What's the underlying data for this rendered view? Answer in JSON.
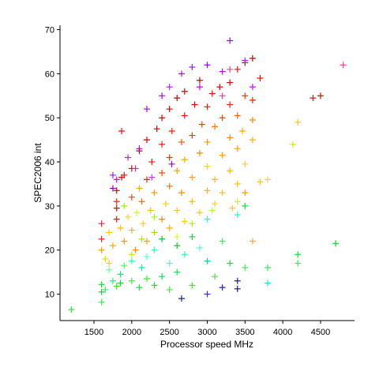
{
  "chart_data": {
    "type": "scatter",
    "xlabel": "Processor speed MHz",
    "ylabel": "SPEC2006 int",
    "xlim": [
      1050,
      4950
    ],
    "ylim": [
      4,
      71
    ],
    "xticks": [
      "1500",
      "2000",
      "2500",
      "3000",
      "3500",
      "4000",
      "4500"
    ],
    "yticks": [
      "10",
      "20",
      "30",
      "40",
      "50",
      "60",
      "70"
    ],
    "grid": false,
    "legend": "none",
    "marker": "plus",
    "points": [
      {
        "x": 1200,
        "y": 6.5,
        "color": "#33dd44"
      },
      {
        "x": 1600,
        "y": 8.2,
        "color": "#44ee44"
      },
      {
        "x": 1600,
        "y": 10.5,
        "color": "#22cc55"
      },
      {
        "x": 1600,
        "y": 12.2,
        "color": "#11dd33"
      },
      {
        "x": 1650,
        "y": 11.0,
        "color": "#33ee66"
      },
      {
        "x": 1700,
        "y": 15.5,
        "color": "#66ff99"
      },
      {
        "x": 1750,
        "y": 13.0,
        "color": "#22ee88"
      },
      {
        "x": 1800,
        "y": 11.8,
        "color": "#44dd22"
      },
      {
        "x": 1850,
        "y": 14.5,
        "color": "#00ee77"
      },
      {
        "x": 1850,
        "y": 12.5,
        "color": "#22cc33"
      },
      {
        "x": 1900,
        "y": 16.5,
        "color": "#55ff55"
      },
      {
        "x": 2000,
        "y": 17.5,
        "color": "#33ffaa"
      },
      {
        "x": 2000,
        "y": 13.0,
        "color": "#44ee22"
      },
      {
        "x": 2100,
        "y": 11.5,
        "color": "#22dd44"
      },
      {
        "x": 2133,
        "y": 16.0,
        "color": "#00eeaa"
      },
      {
        "x": 2200,
        "y": 18.5,
        "color": "#55ffcc"
      },
      {
        "x": 2200,
        "y": 13.5,
        "color": "#33ee33"
      },
      {
        "x": 2300,
        "y": 12.0,
        "color": "#22dd33"
      },
      {
        "x": 2300,
        "y": 20.0,
        "color": "#22ffbb"
      },
      {
        "x": 2400,
        "y": 14.0,
        "color": "#11dd55"
      },
      {
        "x": 2400,
        "y": 22.5,
        "color": "#00cc33"
      },
      {
        "x": 2500,
        "y": 17.0,
        "color": "#44ffcc"
      },
      {
        "x": 2500,
        "y": 11.0,
        "color": "#33ee44"
      },
      {
        "x": 2600,
        "y": 15.0,
        "color": "#22dd55"
      },
      {
        "x": 2600,
        "y": 21.0,
        "color": "#11cc22"
      },
      {
        "x": 2660,
        "y": 9.0,
        "color": "#1122aa"
      },
      {
        "x": 2700,
        "y": 19.0,
        "color": "#33ffaa"
      },
      {
        "x": 2800,
        "y": 12.0,
        "color": "#44dd33"
      },
      {
        "x": 2800,
        "y": 23.0,
        "color": "#22cc44"
      },
      {
        "x": 2900,
        "y": 20.5,
        "color": "#55ffcc"
      },
      {
        "x": 3000,
        "y": 17.5,
        "color": "#00ccaa"
      },
      {
        "x": 3000,
        "y": 10.0,
        "color": "#3333cc"
      },
      {
        "x": 3000,
        "y": 27.0,
        "color": "#22ffcc"
      },
      {
        "x": 3100,
        "y": 14.0,
        "color": "#55dd44"
      },
      {
        "x": 3200,
        "y": 11.5,
        "color": "#2222aa"
      },
      {
        "x": 3200,
        "y": 22.0,
        "color": "#33ee66"
      },
      {
        "x": 3300,
        "y": 17.0,
        "color": "#11dd55"
      },
      {
        "x": 3400,
        "y": 13.0,
        "color": "#222288"
      },
      {
        "x": 3400,
        "y": 11.2,
        "color": "#111177"
      },
      {
        "x": 3400,
        "y": 28.0,
        "color": "#33ffbb"
      },
      {
        "x": 3500,
        "y": 30.0,
        "color": "#11dd33"
      },
      {
        "x": 3500,
        "y": 16.0,
        "color": "#44ee55"
      },
      {
        "x": 3600,
        "y": 22.0,
        "color": "#ffaa33"
      },
      {
        "x": 3800,
        "y": 12.5,
        "color": "#22ddee"
      },
      {
        "x": 3800,
        "y": 16.0,
        "color": "#33ee55"
      },
      {
        "x": 4200,
        "y": 17.0,
        "color": "#44ee44"
      },
      {
        "x": 4200,
        "y": 19.0,
        "color": "#22dd33"
      },
      {
        "x": 4700,
        "y": 21.5,
        "color": "#11cc33"
      },
      {
        "x": 1600,
        "y": 20.0,
        "color": "#ff9900"
      },
      {
        "x": 1600,
        "y": 22.5,
        "color": "#ee2222"
      },
      {
        "x": 1600,
        "y": 26.0,
        "color": "#ee2244"
      },
      {
        "x": 1650,
        "y": 18.0,
        "color": "#ccee00"
      },
      {
        "x": 1700,
        "y": 24.0,
        "color": "#ffcc00"
      },
      {
        "x": 1750,
        "y": 21.0,
        "color": "#ffaa00"
      },
      {
        "x": 1800,
        "y": 27.0,
        "color": "#ee1111"
      },
      {
        "x": 1800,
        "y": 29.5,
        "color": "#dd0000"
      },
      {
        "x": 1800,
        "y": 31.0,
        "color": "#ff2200"
      },
      {
        "x": 1800,
        "y": 33.5,
        "color": "#cc0000"
      },
      {
        "x": 1850,
        "y": 25.0,
        "color": "#ffbb22"
      },
      {
        "x": 1866,
        "y": 36.5,
        "color": "#ee0000"
      },
      {
        "x": 1900,
        "y": 22.0,
        "color": "#ff9900"
      },
      {
        "x": 1900,
        "y": 30.0,
        "color": "#aaee00"
      },
      {
        "x": 1900,
        "y": 37.0,
        "color": "#dd1111"
      },
      {
        "x": 1950,
        "y": 27.5,
        "color": "#ffcc33"
      },
      {
        "x": 2000,
        "y": 24.5,
        "color": "#ffaa22"
      },
      {
        "x": 2000,
        "y": 32.0,
        "color": "#ee4400"
      },
      {
        "x": 2000,
        "y": 38.5,
        "color": "#ee0000"
      },
      {
        "x": 2050,
        "y": 20.0,
        "color": "#ff8800"
      },
      {
        "x": 2066,
        "y": 28.5,
        "color": "#ccff11"
      },
      {
        "x": 2100,
        "y": 34.0,
        "color": "#ffaa00"
      },
      {
        "x": 2100,
        "y": 42.5,
        "color": "#cc0000"
      },
      {
        "x": 2133,
        "y": 31.0,
        "color": "#ff6600"
      },
      {
        "x": 2150,
        "y": 26.0,
        "color": "#ffcc22"
      },
      {
        "x": 2200,
        "y": 36.0,
        "color": "#ee2200"
      },
      {
        "x": 2200,
        "y": 22.0,
        "color": "#ff9922"
      },
      {
        "x": 2200,
        "y": 45.0,
        "color": "#dd0000"
      },
      {
        "x": 2250,
        "y": 29.0,
        "color": "#ffbb00"
      },
      {
        "x": 2266,
        "y": 40.0,
        "color": "#ee1100"
      },
      {
        "x": 2300,
        "y": 33.0,
        "color": "#ff9900"
      },
      {
        "x": 2300,
        "y": 24.0,
        "color": "#aadd00"
      },
      {
        "x": 2333,
        "y": 47.5,
        "color": "#cc0000"
      },
      {
        "x": 2400,
        "y": 27.0,
        "color": "#ff8800"
      },
      {
        "x": 2400,
        "y": 37.5,
        "color": "#ff4400"
      },
      {
        "x": 2400,
        "y": 44.0,
        "color": "#ee2200"
      },
      {
        "x": 2400,
        "y": 50.0,
        "color": "#dd0000"
      },
      {
        "x": 2450,
        "y": 30.5,
        "color": "#ffcc00"
      },
      {
        "x": 2500,
        "y": 25.0,
        "color": "#ffaa11"
      },
      {
        "x": 2500,
        "y": 34.5,
        "color": "#ff7700"
      },
      {
        "x": 2500,
        "y": 41.0,
        "color": "#ee3300"
      },
      {
        "x": 2500,
        "y": 52.0,
        "color": "#dd0000"
      },
      {
        "x": 2533,
        "y": 47.0,
        "color": "#ff2200"
      },
      {
        "x": 2600,
        "y": 29.0,
        "color": "#ffbb33"
      },
      {
        "x": 2600,
        "y": 38.0,
        "color": "#ff9900"
      },
      {
        "x": 2600,
        "y": 54.5,
        "color": "#cc0000"
      },
      {
        "x": 2660,
        "y": 33.0,
        "color": "#ff8800"
      },
      {
        "x": 2660,
        "y": 44.5,
        "color": "#ff5500"
      },
      {
        "x": 2700,
        "y": 26.5,
        "color": "#ffcc11"
      },
      {
        "x": 2700,
        "y": 40.5,
        "color": "#ffaa00"
      },
      {
        "x": 2700,
        "y": 50.5,
        "color": "#ee1100"
      },
      {
        "x": 2700,
        "y": 56.0,
        "color": "#dd0000"
      },
      {
        "x": 2800,
        "y": 31.0,
        "color": "#ffbb00"
      },
      {
        "x": 2800,
        "y": 36.5,
        "color": "#ff9933"
      },
      {
        "x": 2800,
        "y": 46.0,
        "color": "#ff3300"
      },
      {
        "x": 2833,
        "y": 53.0,
        "color": "#ee0000"
      },
      {
        "x": 2900,
        "y": 28.5,
        "color": "#ffcc00"
      },
      {
        "x": 2900,
        "y": 42.0,
        "color": "#ff8800"
      },
      {
        "x": 2900,
        "y": 58.5,
        "color": "#cc0000"
      },
      {
        "x": 2930,
        "y": 48.5,
        "color": "#ff4400"
      },
      {
        "x": 3000,
        "y": 33.5,
        "color": "#ffaa22"
      },
      {
        "x": 3000,
        "y": 39.0,
        "color": "#ffcc33"
      },
      {
        "x": 3000,
        "y": 44.5,
        "color": "#ff9900"
      },
      {
        "x": 3000,
        "y": 52.5,
        "color": "#ee2200"
      },
      {
        "x": 3066,
        "y": 55.5,
        "color": "#dd1100"
      },
      {
        "x": 3100,
        "y": 36.0,
        "color": "#ffbb00"
      },
      {
        "x": 3100,
        "y": 48.0,
        "color": "#ff7700"
      },
      {
        "x": 3100,
        "y": 30.5,
        "color": "#ffcc22"
      },
      {
        "x": 3166,
        "y": 57.0,
        "color": "#ee0000"
      },
      {
        "x": 3200,
        "y": 41.5,
        "color": "#ff9900"
      },
      {
        "x": 3200,
        "y": 50.0,
        "color": "#ff4400"
      },
      {
        "x": 3200,
        "y": 33.0,
        "color": "#ffbb33"
      },
      {
        "x": 3300,
        "y": 38.0,
        "color": "#ffaa00"
      },
      {
        "x": 3300,
        "y": 45.5,
        "color": "#ff8800"
      },
      {
        "x": 3300,
        "y": 53.0,
        "color": "#ee2200"
      },
      {
        "x": 3300,
        "y": 58.0,
        "color": "#dd0000"
      },
      {
        "x": 3333,
        "y": 29.5,
        "color": "#ffcc11"
      },
      {
        "x": 3400,
        "y": 43.0,
        "color": "#ff9922"
      },
      {
        "x": 3400,
        "y": 50.5,
        "color": "#ff5500"
      },
      {
        "x": 3400,
        "y": 61.0,
        "color": "#ee1100"
      },
      {
        "x": 3400,
        "y": 35.0,
        "color": "#ffbb00"
      },
      {
        "x": 3466,
        "y": 47.0,
        "color": "#ffaa00"
      },
      {
        "x": 3500,
        "y": 39.5,
        "color": "#ffcc33"
      },
      {
        "x": 3500,
        "y": 55.0,
        "color": "#ee3300"
      },
      {
        "x": 3500,
        "y": 62.5,
        "color": "#dd0000"
      },
      {
        "x": 3500,
        "y": 33.0,
        "color": "#ff9900"
      },
      {
        "x": 3600,
        "y": 45.0,
        "color": "#ffaa11"
      },
      {
        "x": 3600,
        "y": 54.0,
        "color": "#ee2200"
      },
      {
        "x": 3600,
        "y": 63.5,
        "color": "#cc0000"
      },
      {
        "x": 3600,
        "y": 49.5,
        "color": "#ff8800"
      },
      {
        "x": 3700,
        "y": 59.0,
        "color": "#ee1100"
      },
      {
        "x": 3700,
        "y": 35.5,
        "color": "#ffbb22"
      },
      {
        "x": 3800,
        "y": 36.0,
        "color": "#ffcc55"
      },
      {
        "x": 4133,
        "y": 44.0,
        "color": "#ccee22"
      },
      {
        "x": 4200,
        "y": 49.0,
        "color": "#ffbb33"
      },
      {
        "x": 4400,
        "y": 54.5,
        "color": "#ee1111"
      },
      {
        "x": 4500,
        "y": 55.0,
        "color": "#dd0000"
      },
      {
        "x": 4800,
        "y": 62.0,
        "color": "#ff4488"
      },
      {
        "x": 1750,
        "y": 37.0,
        "color": "#aa11ee"
      },
      {
        "x": 1750,
        "y": 34.0,
        "color": "#9900cc"
      },
      {
        "x": 1866,
        "y": 47.0,
        "color": "#ee1111"
      },
      {
        "x": 1950,
        "y": 41.0,
        "color": "#bb22ee"
      },
      {
        "x": 2100,
        "y": 43.0,
        "color": "#aa00dd"
      },
      {
        "x": 2200,
        "y": 52.0,
        "color": "#9911ee"
      },
      {
        "x": 2266,
        "y": 36.5,
        "color": "#cc33ff"
      },
      {
        "x": 2400,
        "y": 55.0,
        "color": "#aa00ee"
      },
      {
        "x": 2500,
        "y": 57.0,
        "color": "#bb22ff"
      },
      {
        "x": 2530,
        "y": 39.5,
        "color": "#9900dd"
      },
      {
        "x": 2660,
        "y": 60.0,
        "color": "#aa11ee"
      },
      {
        "x": 2800,
        "y": 61.5,
        "color": "#9922ff"
      },
      {
        "x": 2900,
        "y": 57.0,
        "color": "#cc00ee"
      },
      {
        "x": 3000,
        "y": 62.0,
        "color": "#aa00ff"
      },
      {
        "x": 3200,
        "y": 60.5,
        "color": "#bb11dd"
      },
      {
        "x": 3300,
        "y": 67.5,
        "color": "#9900ee"
      },
      {
        "x": 3500,
        "y": 63.0,
        "color": "#aa22ff"
      },
      {
        "x": 3600,
        "y": 57.0,
        "color": "#cc11ee"
      },
      {
        "x": 1800,
        "y": 36.0,
        "color": "#ff00aa"
      },
      {
        "x": 2050,
        "y": 38.5,
        "color": "#ee2288"
      },
      {
        "x": 3200,
        "y": 55.0,
        "color": "#ff3399"
      },
      {
        "x": 3300,
        "y": 61.0,
        "color": "#ee4488"
      },
      {
        "x": 1700,
        "y": 17.0,
        "color": "#ffcc00"
      },
      {
        "x": 2000,
        "y": 19.0,
        "color": "#ccee00"
      },
      {
        "x": 2133,
        "y": 22.5,
        "color": "#bbdd11"
      },
      {
        "x": 2300,
        "y": 27.5,
        "color": "#aaee22"
      },
      {
        "x": 2600,
        "y": 23.0,
        "color": "#ccff33"
      },
      {
        "x": 2800,
        "y": 26.0,
        "color": "#bbee00"
      },
      {
        "x": 3066,
        "y": 29.0,
        "color": "#aaff22"
      },
      {
        "x": 3400,
        "y": 31.0,
        "color": "#ccee44"
      }
    ]
  }
}
